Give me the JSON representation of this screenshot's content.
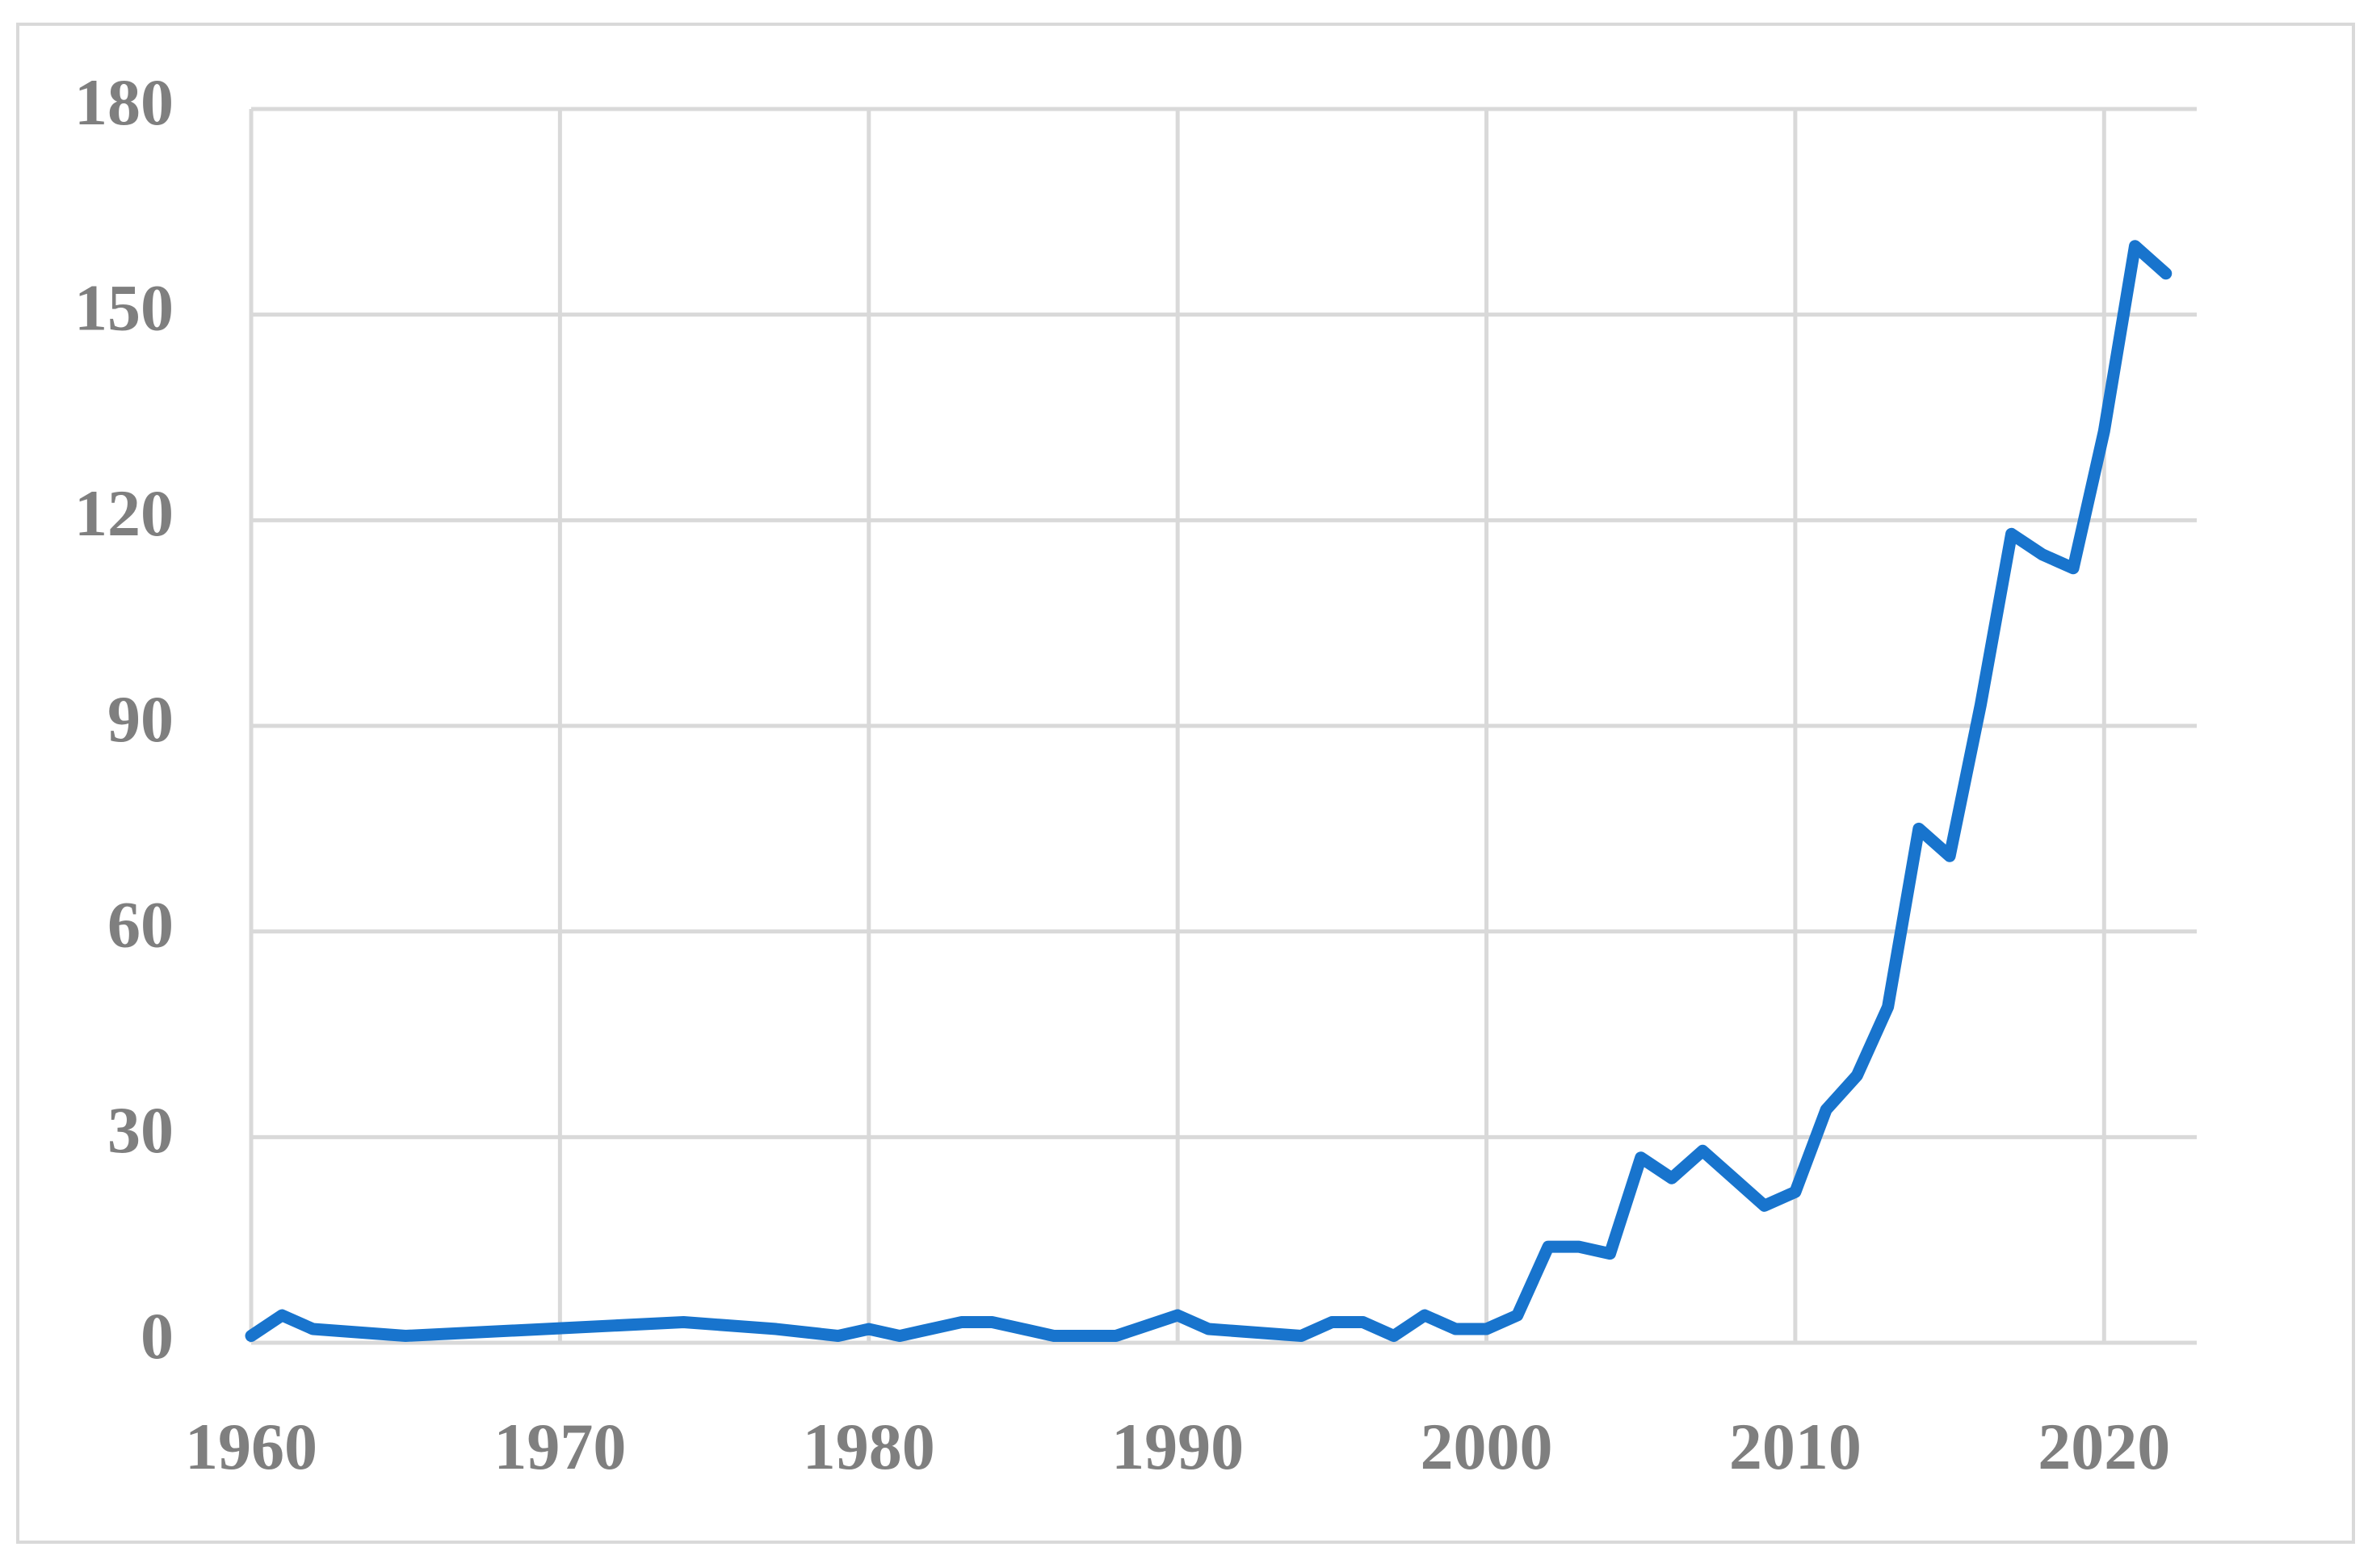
{
  "chart_data": {
    "type": "line",
    "x": [
      1960,
      1961,
      1962,
      1965,
      1974,
      1977,
      1979,
      1980,
      1981,
      1983,
      1984,
      1986,
      1988,
      1990,
      1991,
      1994,
      1995,
      1996,
      1997,
      1998,
      1999,
      2000,
      2001,
      2002,
      2003,
      2004,
      2005,
      2006,
      2007,
      2008,
      2009,
      2010,
      2011,
      2012,
      2013,
      2014,
      2015,
      2016,
      2017,
      2018,
      2019,
      2020,
      2021,
      2022
    ],
    "series": [
      {
        "color": "#1874cd",
        "values": [
          1,
          4,
          2,
          1,
          3,
          2,
          1,
          2,
          1,
          3,
          3,
          1,
          1,
          4,
          2,
          1,
          3,
          3,
          1,
          4,
          2,
          2,
          4,
          14,
          14,
          13,
          27,
          24,
          28,
          24,
          20,
          22,
          34,
          39,
          49,
          75,
          71,
          93,
          118,
          115,
          113,
          133,
          160,
          156
        ]
      }
    ],
    "xlim": [
      1960,
      2023
    ],
    "xticks": [
      1960,
      1970,
      1980,
      1990,
      2000,
      2010,
      2020
    ],
    "ylim": [
      0,
      180
    ],
    "yticks": [
      0,
      30,
      60,
      90,
      120,
      150,
      180
    ],
    "grid": true
  }
}
